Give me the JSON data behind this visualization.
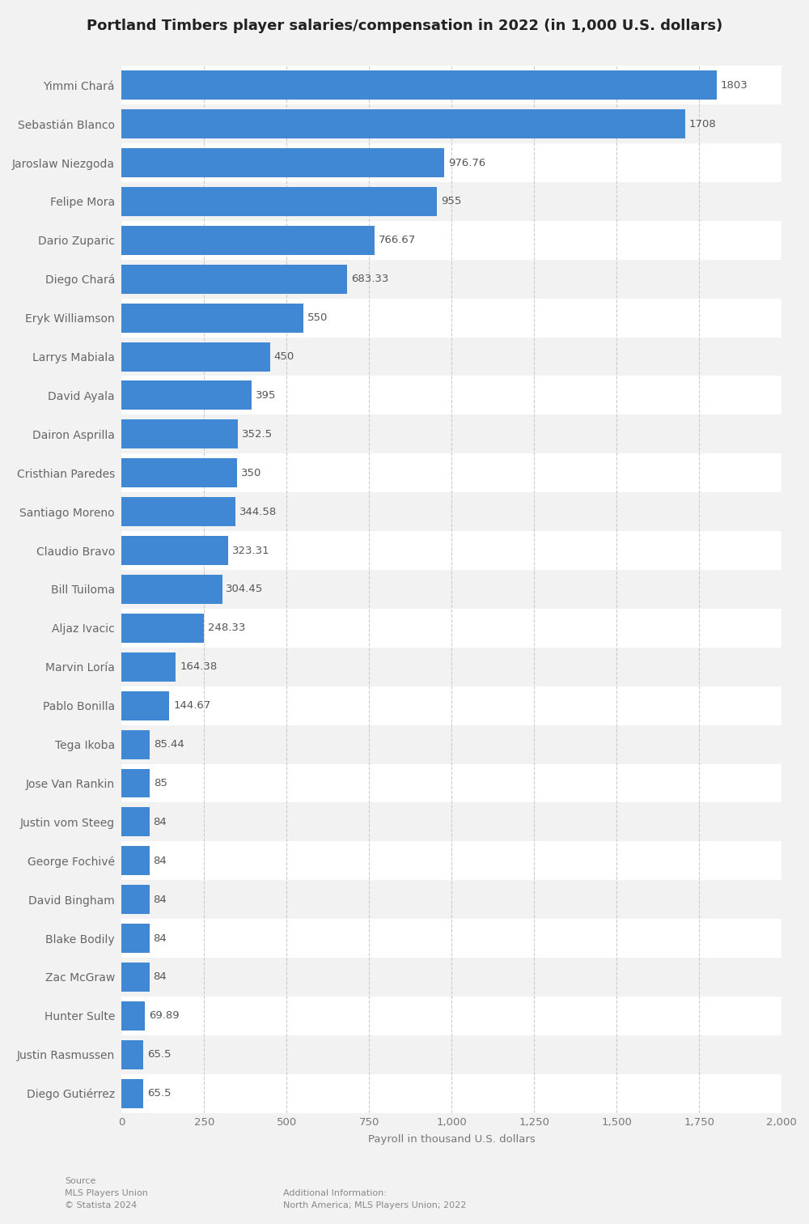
{
  "title": "Portland Timbers player salaries/compensation in 2022 (in 1,000 U.S. dollars)",
  "xlabel": "Payroll in thousand U.S. dollars",
  "players": [
    "Yimmi Chará",
    "Sebastián Blanco",
    "Jaroslaw Niezgoda",
    "Felipe Mora",
    "Dario Zuparic",
    "Diego Chará",
    "Eryk Williamson",
    "Larrys Mabiala",
    "David Ayala",
    "Dairon Asprilla",
    "Cristhian Paredes",
    "Santiago Moreno",
    "Claudio Bravo",
    "Bill Tuiloma",
    "Aljaz Ivacic",
    "Marvin Loría",
    "Pablo Bonilla",
    "Tega Ikoba",
    "Jose Van Rankin",
    "Justin vom Steeg",
    "George Fochivé",
    "David Bingham",
    "Blake Bodily",
    "Zac McGraw",
    "Hunter Sulte",
    "Justin Rasmussen",
    "Diego Gutiérrez"
  ],
  "values": [
    1803,
    1708,
    976.76,
    955,
    766.67,
    683.33,
    550,
    450,
    395,
    352.5,
    350,
    344.58,
    323.31,
    304.45,
    248.33,
    164.38,
    144.67,
    85.44,
    85,
    84,
    84,
    84,
    84,
    84,
    69.89,
    65.5,
    65.5
  ],
  "bar_color": "#4088d4",
  "row_color_odd": "#f2f2f2",
  "row_color_even": "#ffffff",
  "bg_color": "#f2f2f2",
  "title_fontsize": 13,
  "label_fontsize": 10,
  "tick_fontsize": 9.5,
  "value_fontsize": 9.5,
  "xlim": [
    0,
    2000
  ],
  "xticks": [
    0,
    250,
    500,
    750,
    1000,
    1250,
    1500,
    1750,
    2000
  ],
  "source_text": "Source\nMLS Players Union\n© Statista 2024",
  "additional_text": "Additional Information:\nNorth America; MLS Players Union; 2022"
}
